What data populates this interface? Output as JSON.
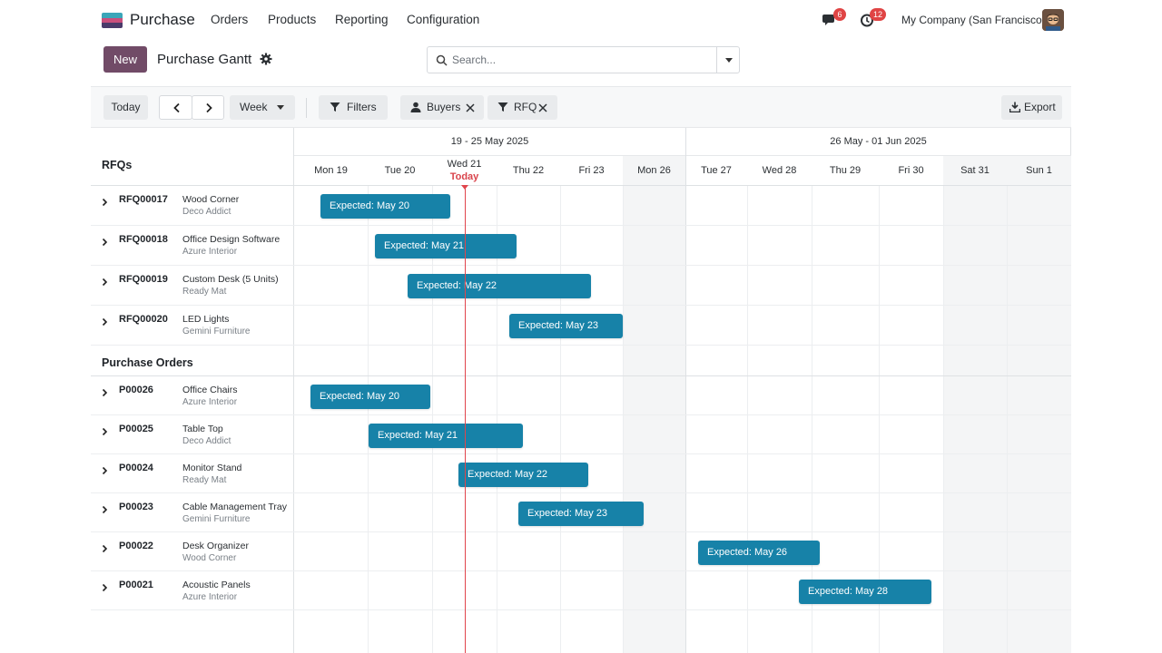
{
  "app": {
    "name": "Purchase",
    "logo_colors": [
      "#3aa6b9",
      "#c94f7c",
      "#4a3a6a"
    ]
  },
  "nav": {
    "items": [
      "Orders",
      "Products",
      "Reporting",
      "Configuration"
    ]
  },
  "systray": {
    "messages_count": "6",
    "activities_count": "12",
    "company": "My Company (San Francisco)"
  },
  "control": {
    "new_label": "New",
    "title": "Purchase Gantt",
    "search_placeholder": "Search..."
  },
  "toolbar": {
    "today": "Today",
    "scale": "Week",
    "filters": "Filters",
    "facet_buyers": "Buyers",
    "facet_rfq": "RFQ",
    "export": "Export"
  },
  "gantt": {
    "weeks": [
      "19 - 25 May 2025",
      "26 May - 01 Jun 2025"
    ],
    "days": [
      "Mon 19",
      "Tue 20",
      "Wed 21",
      "Thu 22",
      "Fri 23",
      "Mon 26",
      "Tue 27",
      "Wed 28",
      "Thu 29",
      "Fri 30",
      "Sat 31",
      "Sun 1"
    ],
    "today_label": "Today",
    "today_color": "#e0454c",
    "pill_color": "#1782a8",
    "groups": [
      {
        "label": "RFQs",
        "rows": [
          {
            "ref": "RFQ00017",
            "product": "Wood Corner",
            "vendor": "Deco Addict",
            "pill": "Expected: May 20"
          },
          {
            "ref": "RFQ00018",
            "product": "Office Design Software",
            "vendor": "Azure Interior",
            "pill": "Expected: May 21"
          },
          {
            "ref": "RFQ00019",
            "product": "Custom Desk (5 Units)",
            "vendor": "Ready Mat",
            "pill": "Expected: May 22"
          },
          {
            "ref": "RFQ00020",
            "product": "LED Lights",
            "vendor": "Gemini Furniture",
            "pill": "Expected: May 23"
          }
        ]
      },
      {
        "label": "Purchase Orders",
        "rows": [
          {
            "ref": "P00026",
            "product": "Office Chairs",
            "vendor": "Azure Interior",
            "pill": "Expected: May 20"
          },
          {
            "ref": "P00025",
            "product": "Table Top",
            "vendor": "Deco Addict",
            "pill": "Expected: May 21"
          },
          {
            "ref": "P00024",
            "product": "Monitor Stand",
            "vendor": "Ready Mat",
            "pill": "Expected: May 22"
          },
          {
            "ref": "P00023",
            "product": "Cable Management Tray",
            "vendor": "Gemini Furniture",
            "pill": "Expected: May 23"
          },
          {
            "ref": "P00022",
            "product": "Desk Organizer",
            "vendor": "Wood Corner",
            "pill": "Expected: May 26"
          },
          {
            "ref": "P00021",
            "product": "Acoustic Panels",
            "vendor": "Azure Interior",
            "pill": "Expected: May 28"
          }
        ]
      }
    ]
  }
}
